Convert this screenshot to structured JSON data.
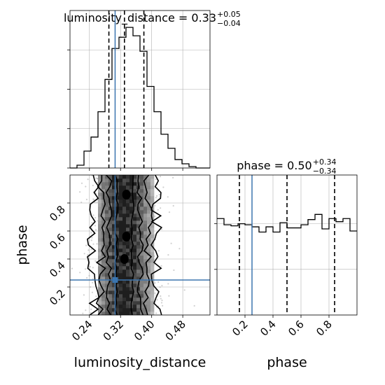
{
  "chart_data": [
    {
      "type": "histogram",
      "panel": "luminosity_distance-marginal",
      "title": "luminosity_distance = 0.33",
      "title_sup": "+0.05",
      "title_sub": "−0.04",
      "parameter": "luminosity_distance",
      "xlim": [
        0.19,
        0.55
      ],
      "bin_edges": [
        0.19,
        0.208,
        0.226,
        0.244,
        0.262,
        0.28,
        0.298,
        0.316,
        0.334,
        0.352,
        0.37,
        0.388,
        0.406,
        0.424,
        0.442,
        0.46,
        0.478,
        0.496,
        0.514,
        0.532,
        0.55
      ],
      "counts": [
        0.0,
        0.02,
        0.12,
        0.22,
        0.4,
        0.63,
        0.85,
        0.93,
        1.0,
        0.94,
        0.83,
        0.58,
        0.4,
        0.24,
        0.14,
        0.06,
        0.03,
        0.01,
        0.0,
        0.0
      ],
      "quantiles": [
        0.29,
        0.33,
        0.38
      ],
      "truth": 0.306,
      "grid": true
    },
    {
      "type": "histogram",
      "panel": "phase-marginal",
      "title": "phase = 0.50",
      "title_sup": "+0.34",
      "title_sub": "−0.34",
      "parameter": "phase",
      "xlim": [
        0.0,
        1.0
      ],
      "bin_edges": [
        0.0,
        0.05,
        0.1,
        0.15,
        0.2,
        0.25,
        0.3,
        0.35,
        0.4,
        0.45,
        0.5,
        0.55,
        0.6,
        0.65,
        0.7,
        0.75,
        0.8,
        0.85,
        0.9,
        0.95,
        1.0
      ],
      "counts": [
        0.93,
        0.87,
        0.86,
        0.88,
        0.87,
        0.85,
        0.8,
        0.85,
        0.8,
        0.89,
        0.84,
        0.84,
        0.87,
        0.92,
        0.97,
        0.83,
        0.93,
        0.9,
        0.93,
        0.81
      ],
      "quantiles": [
        0.16,
        0.5,
        0.84
      ],
      "truth": 0.25,
      "grid": true
    },
    {
      "type": "heatmap",
      "panel": "joint-2d",
      "xlabel": "luminosity_distance",
      "ylabel": "phase",
      "xlim": [
        0.19,
        0.55
      ],
      "ylim": [
        0.0,
        1.0
      ],
      "x_ticks": [
        "0.24",
        "0.32",
        "0.40",
        "0.48"
      ],
      "y_ticks": [
        "0.2",
        "0.4",
        "0.6",
        "0.8"
      ],
      "density_center": 0.33,
      "density_sigma": 0.045,
      "contour_levels_sigma": [
        0.5,
        1.0,
        1.5,
        2.0
      ],
      "truth": [
        0.306,
        0.25
      ],
      "grid": true
    }
  ],
  "axis_labels": {
    "bottom_left": "luminosity_distance",
    "bottom_right": "phase",
    "left": "phase"
  },
  "x_ticks_left": [
    "0.24",
    "0.32",
    "0.40",
    "0.48"
  ],
  "x_ticks_right": [
    "0.2",
    "0.4",
    "0.6",
    "0.8"
  ],
  "colors": {
    "truth": "#3b75af",
    "hist": "#000000",
    "grid": "#b0b0b0",
    "contour": "#000000"
  }
}
